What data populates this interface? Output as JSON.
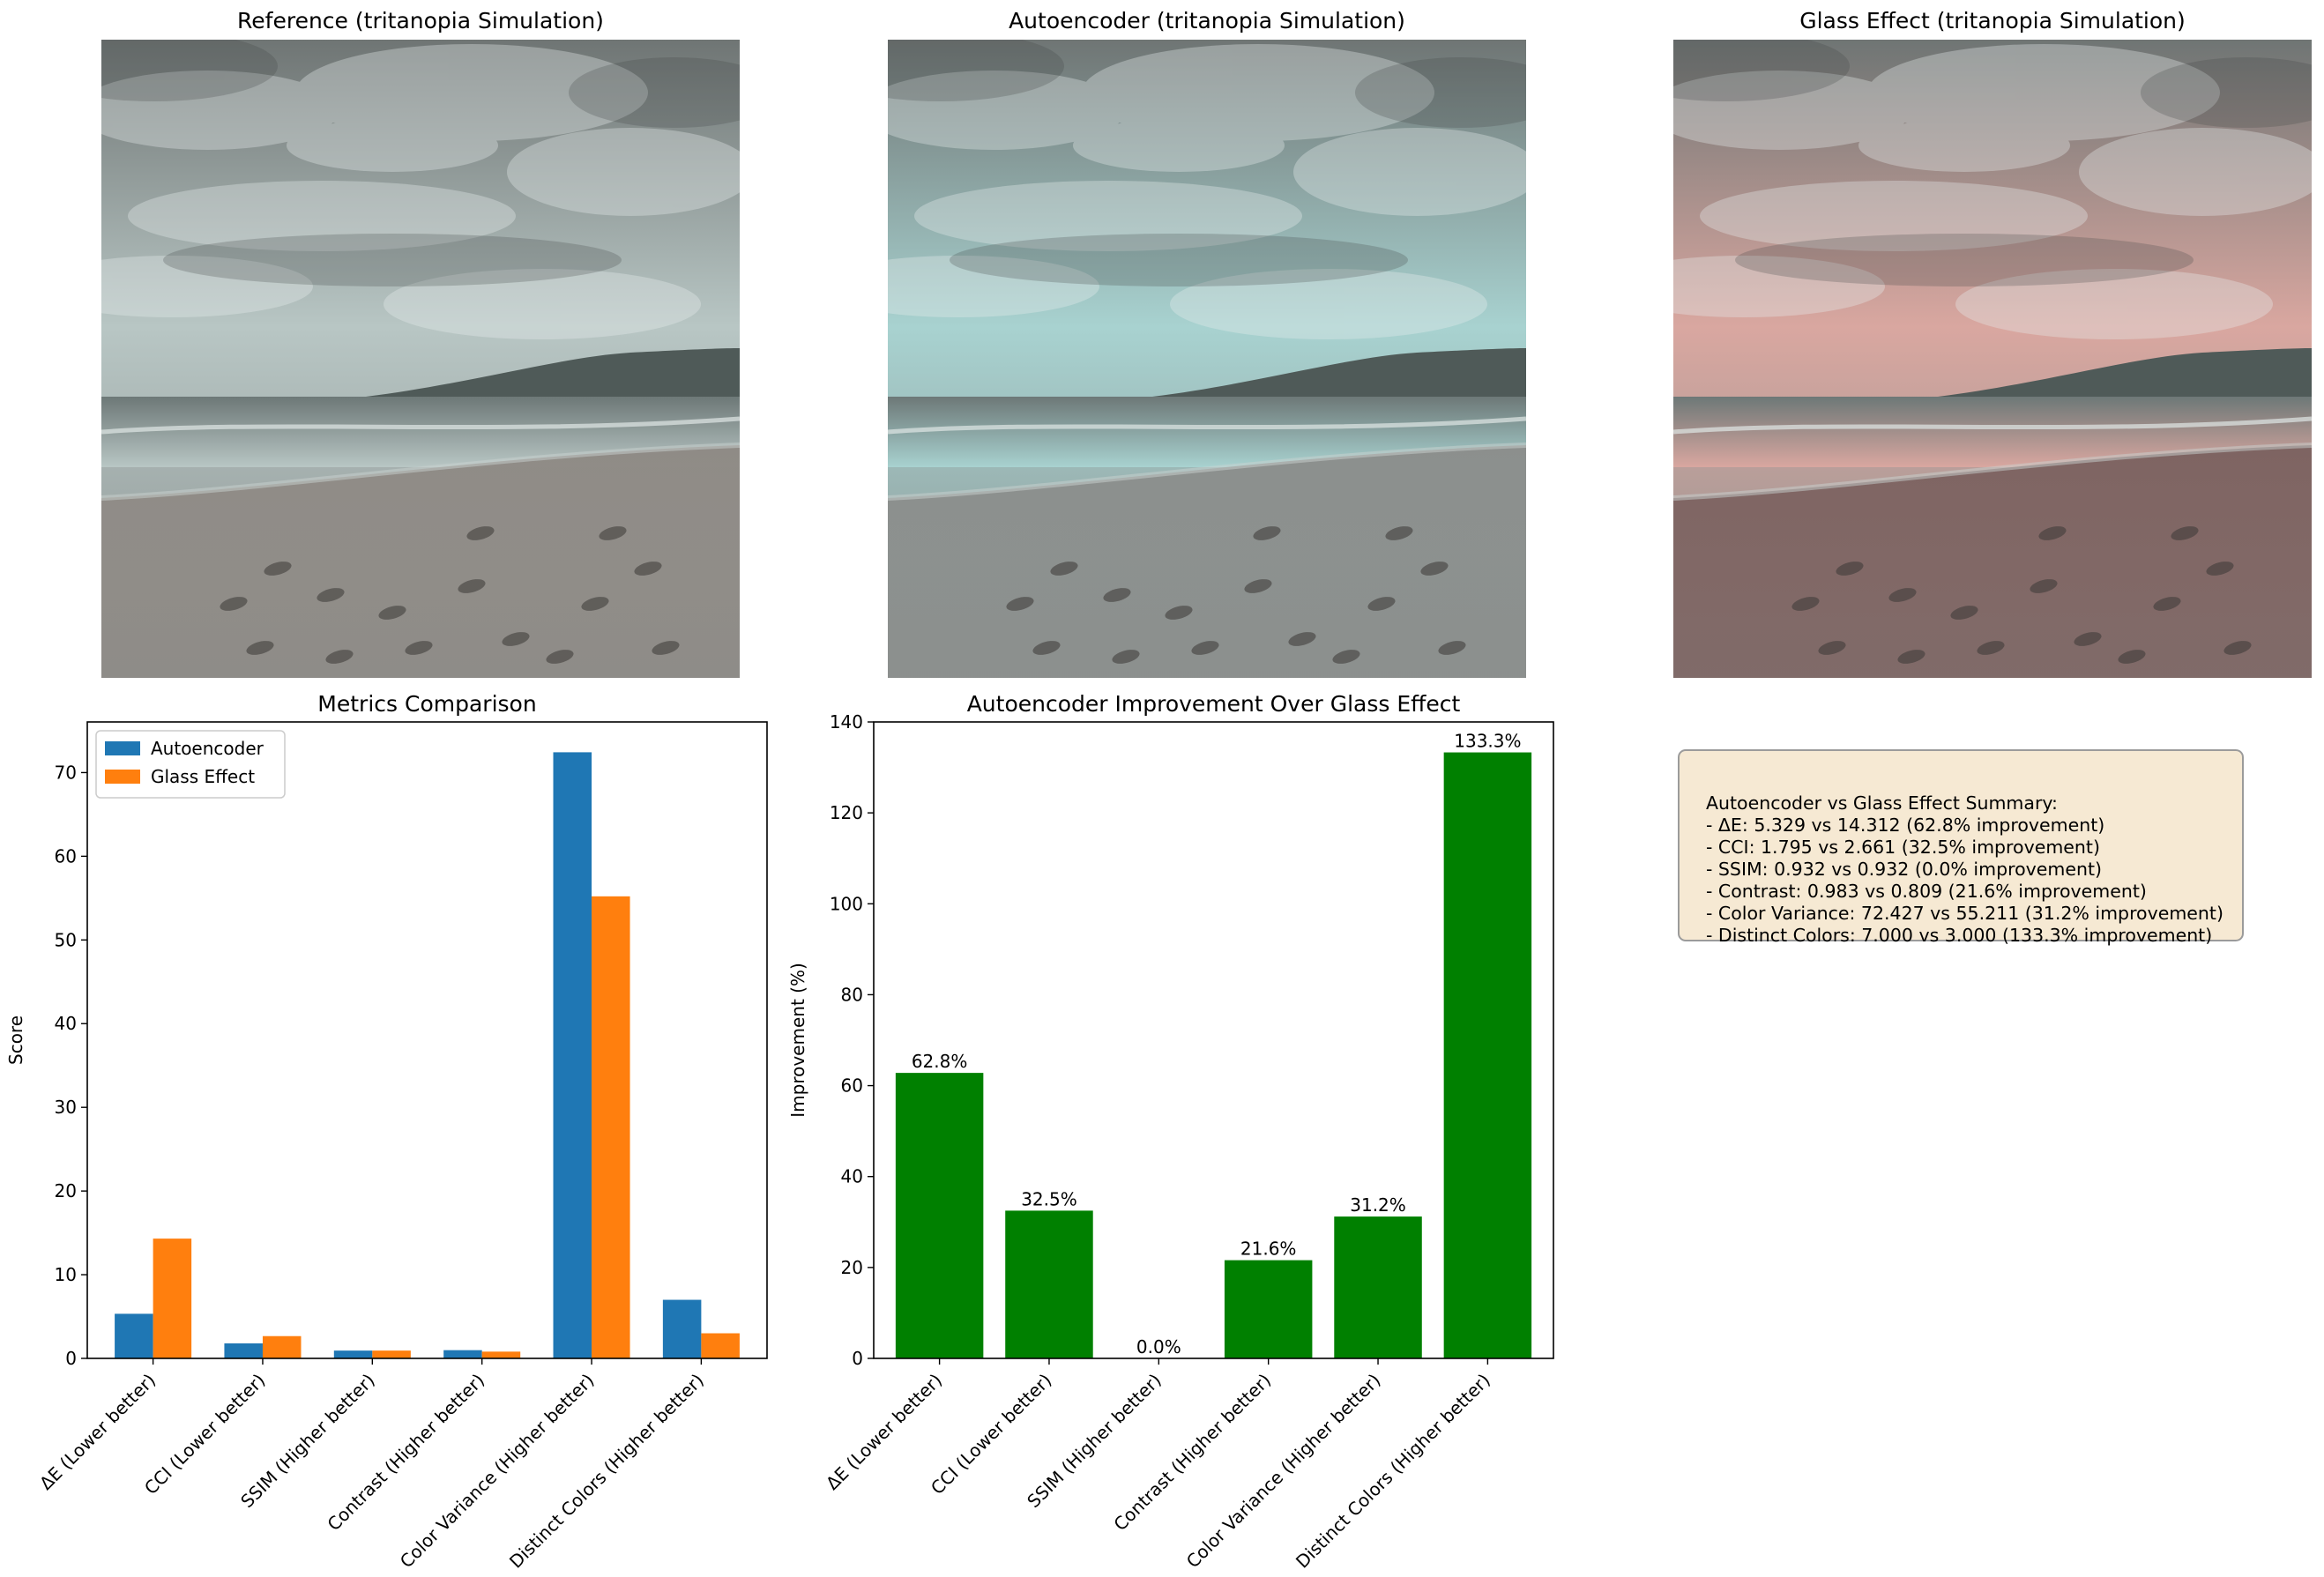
{
  "panels": [
    {
      "title": "Reference (tritanopia Simulation)",
      "tint": "#b8c6c4",
      "sand": "#8f8b86",
      "tintAlpha": 0.0
    },
    {
      "title": "Autoencoder (tritanopia Simulation)",
      "tint": "#a8d2d0",
      "sand": "#8c8f8d",
      "tintAlpha": 0.0
    },
    {
      "title": "Glass Effect (tritanopia Simulation)",
      "tint": "#d9a7a0",
      "sand": "#7e6462",
      "tintAlpha": 0.0
    }
  ],
  "chart_data": [
    {
      "type": "bar",
      "title": "Metrics Comparison",
      "xlabel": "",
      "ylabel": "Score",
      "categories": [
        "ΔE (Lower better)",
        "CCI (Lower better)",
        "SSIM (Higher better)",
        "Contrast (Higher better)",
        "Color Variance (Higher better)",
        "Distinct Colors (Higher better)"
      ],
      "series": [
        {
          "name": "Autoencoder",
          "color": "#1f77b4",
          "values": [
            5.329,
            1.795,
            0.932,
            0.983,
            72.427,
            7.0
          ]
        },
        {
          "name": "Glass Effect",
          "color": "#ff7f0e",
          "values": [
            14.312,
            2.661,
            0.932,
            0.809,
            55.211,
            3.0
          ]
        }
      ],
      "ylim": [
        0,
        76.05
      ],
      "yticks": [
        0,
        10,
        20,
        30,
        40,
        50,
        60,
        70
      ],
      "legend": "top-left",
      "grid": false
    },
    {
      "type": "bar",
      "title": "Autoencoder Improvement Over Glass Effect",
      "xlabel": "",
      "ylabel": "Improvement (%)",
      "categories": [
        "ΔE (Lower better)",
        "CCI (Lower better)",
        "SSIM (Higher better)",
        "Contrast (Higher better)",
        "Color Variance (Higher better)",
        "Distinct Colors (Higher better)"
      ],
      "values": [
        62.8,
        32.5,
        0.0,
        21.6,
        31.2,
        133.3
      ],
      "data_labels": [
        "62.8%",
        "32.5%",
        "0.0%",
        "21.6%",
        "31.2%",
        "133.3%"
      ],
      "color": "#008000",
      "ylim": [
        0,
        140
      ],
      "yticks": [
        0,
        20,
        40,
        60,
        80,
        100,
        120,
        140
      ],
      "grid": false
    }
  ],
  "summary": {
    "lines": [
      "Autoencoder vs Glass Effect Summary:",
      "- ΔE: 5.329 vs 14.312 (62.8% improvement)",
      "- CCI: 1.795 vs 2.661 (32.5% improvement)",
      "- SSIM: 0.932 vs 0.932 (0.0% improvement)",
      "- Contrast: 0.983 vs 0.809 (21.6% improvement)",
      "- Color Variance: 72.427 vs 55.211 (31.2% improvement)",
      "- Distinct Colors: 7.000 vs 3.000 (133.3% improvement)"
    ]
  }
}
